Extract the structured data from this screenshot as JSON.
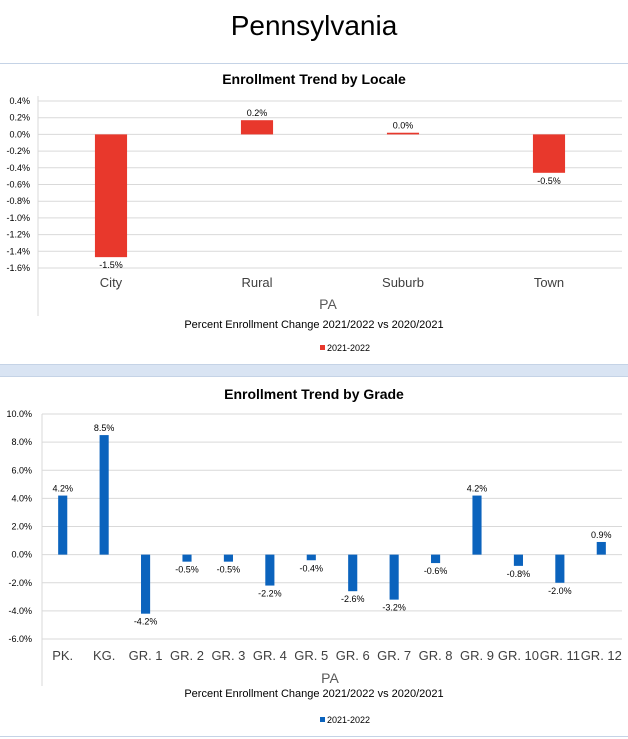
{
  "page": {
    "title": "Pennsylvania"
  },
  "chart_data": [
    {
      "type": "bar",
      "title": "Enrollment Trend by Locale",
      "categories": [
        "City",
        "Rural",
        "Suburb",
        "Town"
      ],
      "series": [
        {
          "name": "2021-2022",
          "values": [
            -1.47,
            0.17,
            0.02,
            -0.46
          ],
          "data_labels": [
            "-1.5%",
            "0.2%",
            "0.0%",
            "-0.5%"
          ]
        }
      ],
      "xlabel": "PA",
      "subtitle": "Percent Enrollment Change 2021/2022 vs 2020/2021",
      "ylim": [
        -1.6,
        0.4
      ],
      "yticks": [
        0.4,
        0.2,
        0.0,
        -0.2,
        -0.4,
        -0.6,
        -0.8,
        -1.0,
        -1.2,
        -1.4,
        -1.6
      ],
      "ytick_labels": [
        "0.4%",
        "0.2%",
        "0.0%",
        "-0.2%",
        "-0.4%",
        "-0.6%",
        "-0.8%",
        "-1.0%",
        "-1.2%",
        "-1.4%",
        "-1.6%"
      ],
      "grid": true,
      "legend_position": "bottom",
      "color": "#e8382c"
    },
    {
      "type": "bar",
      "title": "Enrollment Trend by Grade",
      "categories": [
        "PK.",
        "KG.",
        "GR. 1",
        "GR. 2",
        "GR. 3",
        "GR. 4",
        "GR. 5",
        "GR. 6",
        "GR. 7",
        "GR. 8",
        "GR. 9",
        "GR. 10",
        "GR. 11",
        "GR. 12"
      ],
      "series": [
        {
          "name": "2021-2022",
          "values": [
            4.2,
            8.5,
            -4.2,
            -0.5,
            -0.5,
            -2.2,
            -0.4,
            -2.6,
            -3.2,
            -0.6,
            4.2,
            -0.8,
            -2.0,
            0.9
          ],
          "data_labels": [
            "4.2%",
            "8.5%",
            "-4.2%",
            "-0.5%",
            "-0.5%",
            "-2.2%",
            "-0.4%",
            "-2.6%",
            "-3.2%",
            "-0.6%",
            "4.2%",
            "-0.8%",
            "-2.0%",
            "0.9%"
          ]
        }
      ],
      "xlabel": "PA",
      "subtitle": "Percent Enrollment Change 2021/2022 vs 2020/2021",
      "ylim": [
        -6.0,
        10.0
      ],
      "yticks": [
        10,
        8,
        6,
        4,
        2,
        0,
        -2,
        -4,
        -6
      ],
      "ytick_labels": [
        "10.0%",
        "8.0%",
        "6.0%",
        "4.0%",
        "2.0%",
        "0.0%",
        "-2.0%",
        "-4.0%",
        "-6.0%"
      ],
      "grid": true,
      "legend_position": "bottom",
      "color": "#0b63bd"
    }
  ]
}
